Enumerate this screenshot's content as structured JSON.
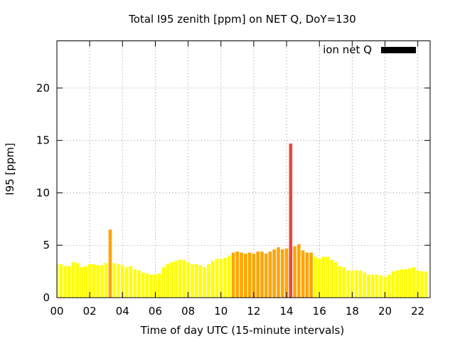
{
  "chart_data": {
    "type": "bar",
    "title": "Total I95 zenith [ppm] on NET Q, DoY=130",
    "xlabel": "Time of day UTC (15-minute intervals)",
    "ylabel": "I95 [ppm]",
    "ylim": [
      0,
      24.5
    ],
    "xlim": [
      0,
      22.75
    ],
    "x_ticks": [
      0,
      2,
      4,
      6,
      8,
      10,
      12,
      14,
      16,
      18,
      20,
      22
    ],
    "x_tick_labels": [
      "00",
      "02",
      "04",
      "06",
      "08",
      "10",
      "12",
      "14",
      "16",
      "18",
      "20",
      "22"
    ],
    "y_ticks": [
      0,
      5,
      10,
      15,
      20
    ],
    "y_tick_labels": [
      "0",
      "5",
      "10",
      "15",
      "20"
    ],
    "grid": true,
    "legend": {
      "position": "top-right",
      "entries": [
        {
          "label": "ion net Q",
          "color": "#000000"
        }
      ]
    },
    "bar_width_hours": 0.2,
    "colors": {
      "low": "#ffff00",
      "medium": "#ffa500",
      "high": "#e8473f",
      "legend_swatch": "#000000"
    },
    "x": [
      0,
      0.25,
      0.5,
      0.75,
      1,
      1.25,
      1.5,
      1.75,
      2,
      2.25,
      2.5,
      2.75,
      3,
      3.25,
      3.5,
      3.75,
      4,
      4.25,
      4.5,
      4.75,
      5,
      5.25,
      5.5,
      5.75,
      6,
      6.25,
      6.5,
      6.75,
      7,
      7.25,
      7.5,
      7.75,
      8,
      8.25,
      8.5,
      8.75,
      9,
      9.25,
      9.5,
      9.75,
      10,
      10.25,
      10.5,
      10.75,
      11,
      11.25,
      11.5,
      11.75,
      12,
      12.25,
      12.5,
      12.75,
      13,
      13.25,
      13.5,
      13.75,
      14,
      14.25,
      14.5,
      14.75,
      15,
      15.25,
      15.5,
      15.75,
      16,
      16.25,
      16.5,
      16.75,
      17,
      17.25,
      17.5,
      17.75,
      18,
      18.25,
      18.5,
      18.75,
      19,
      19.25,
      19.5,
      19.75,
      20,
      20.25,
      20.5,
      20.75,
      21,
      21.25,
      21.5,
      21.75,
      22,
      22.25,
      22.5
    ],
    "values": [
      3.2,
      3.2,
      3.0,
      3.0,
      3.4,
      3.3,
      2.9,
      3.0,
      3.2,
      3.2,
      3.1,
      3.1,
      3.3,
      6.5,
      3.3,
      3.2,
      3.1,
      2.9,
      3.0,
      2.7,
      2.6,
      2.4,
      2.3,
      2.2,
      2.2,
      2.3,
      2.9,
      3.2,
      3.4,
      3.5,
      3.6,
      3.6,
      3.4,
      3.2,
      3.2,
      3.1,
      2.9,
      3.2,
      3.5,
      3.7,
      3.7,
      3.8,
      4.0,
      4.3,
      4.4,
      4.3,
      4.2,
      4.3,
      4.2,
      4.4,
      4.4,
      4.2,
      4.4,
      4.6,
      4.8,
      4.6,
      4.7,
      14.7,
      4.9,
      5.1,
      4.5,
      4.3,
      4.3,
      3.9,
      3.7,
      3.9,
      3.9,
      3.6,
      3.4,
      3.0,
      2.9,
      2.6,
      2.6,
      2.6,
      2.6,
      2.4,
      2.2,
      2.2,
      2.2,
      2.1,
      2.0,
      2.2,
      2.5,
      2.6,
      2.7,
      2.7,
      2.8,
      2.9,
      2.6,
      2.5,
      2.5
    ],
    "levels": [
      "low",
      "low",
      "low",
      "low",
      "low",
      "low",
      "low",
      "low",
      "low",
      "low",
      "low",
      "low",
      "low",
      "medium",
      "low",
      "low",
      "low",
      "low",
      "low",
      "low",
      "low",
      "low",
      "low",
      "low",
      "low",
      "low",
      "low",
      "low",
      "low",
      "low",
      "low",
      "low",
      "low",
      "low",
      "low",
      "low",
      "low",
      "low",
      "low",
      "low",
      "low",
      "low",
      "low",
      "medium",
      "medium",
      "medium",
      "medium",
      "medium",
      "medium",
      "medium",
      "medium",
      "medium",
      "medium",
      "medium",
      "medium",
      "medium",
      "medium",
      "high",
      "medium",
      "medium",
      "medium",
      "medium",
      "medium",
      "low",
      "low",
      "low",
      "low",
      "low",
      "low",
      "low",
      "low",
      "low",
      "low",
      "low",
      "low",
      "low",
      "low",
      "low",
      "low",
      "low",
      "low",
      "low",
      "low",
      "low",
      "low",
      "low",
      "low",
      "low",
      "low",
      "low",
      "low"
    ]
  }
}
